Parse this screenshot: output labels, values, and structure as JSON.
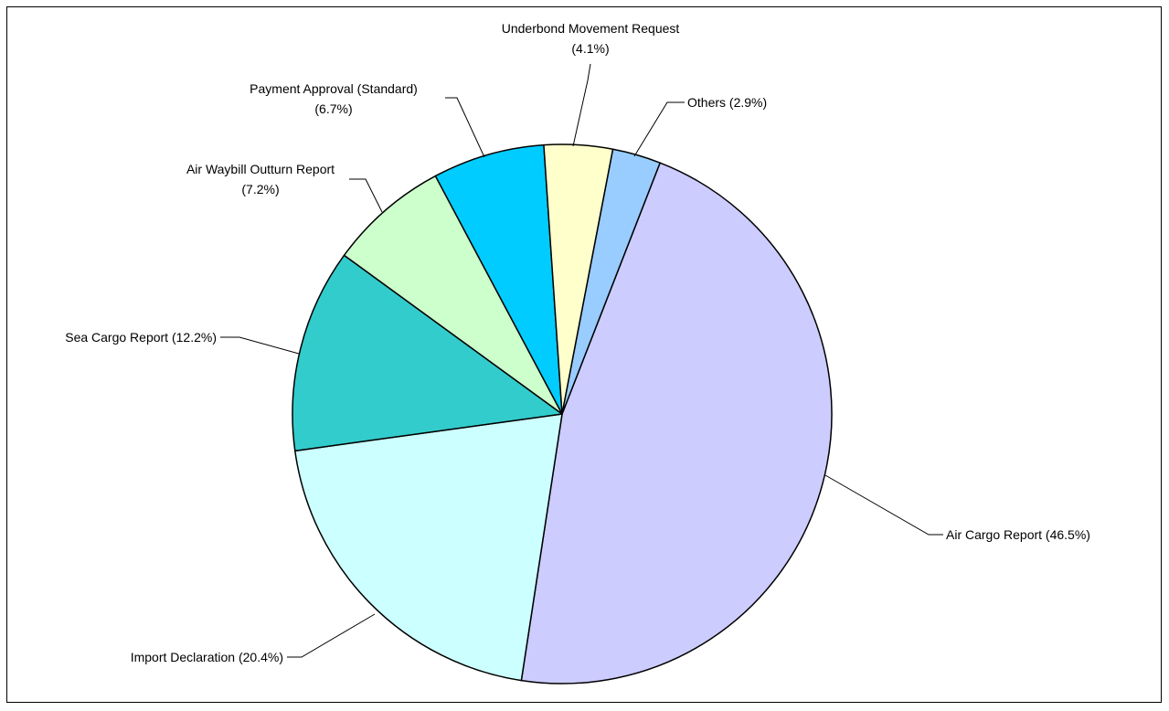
{
  "chart_data": {
    "type": "pie",
    "title": "",
    "slices": [
      {
        "label": "Air Cargo Report",
        "value": 46.5,
        "display": "Air Cargo Report (46.5%)",
        "color": "#ccccff"
      },
      {
        "label": "Import Declaration",
        "value": 20.4,
        "display": "Import Declaration (20.4%)",
        "color": "#ccffff"
      },
      {
        "label": "Sea Cargo Report",
        "value": 12.2,
        "display": "Sea Cargo Report (12.2%)",
        "color": "#33cccc"
      },
      {
        "label": "Air Waybill Outturn Report",
        "value": 7.2,
        "display": [
          "Air Waybill Outturn Report",
          "(7.2%)"
        ],
        "color": "#ccffcc"
      },
      {
        "label": "Payment Approval (Standard)",
        "value": 6.7,
        "display": [
          "Payment Approval (Standard)",
          "(6.7%)"
        ],
        "color": "#00ccff"
      },
      {
        "label": "Underbond Movement Request",
        "value": 4.1,
        "display": [
          "Underbond Movement Request",
          "(4.1%)"
        ],
        "color": "#ffffcc"
      },
      {
        "label": "Others",
        "value": 2.9,
        "display": "Others (2.9%)",
        "color": "#99ccff"
      }
    ]
  }
}
